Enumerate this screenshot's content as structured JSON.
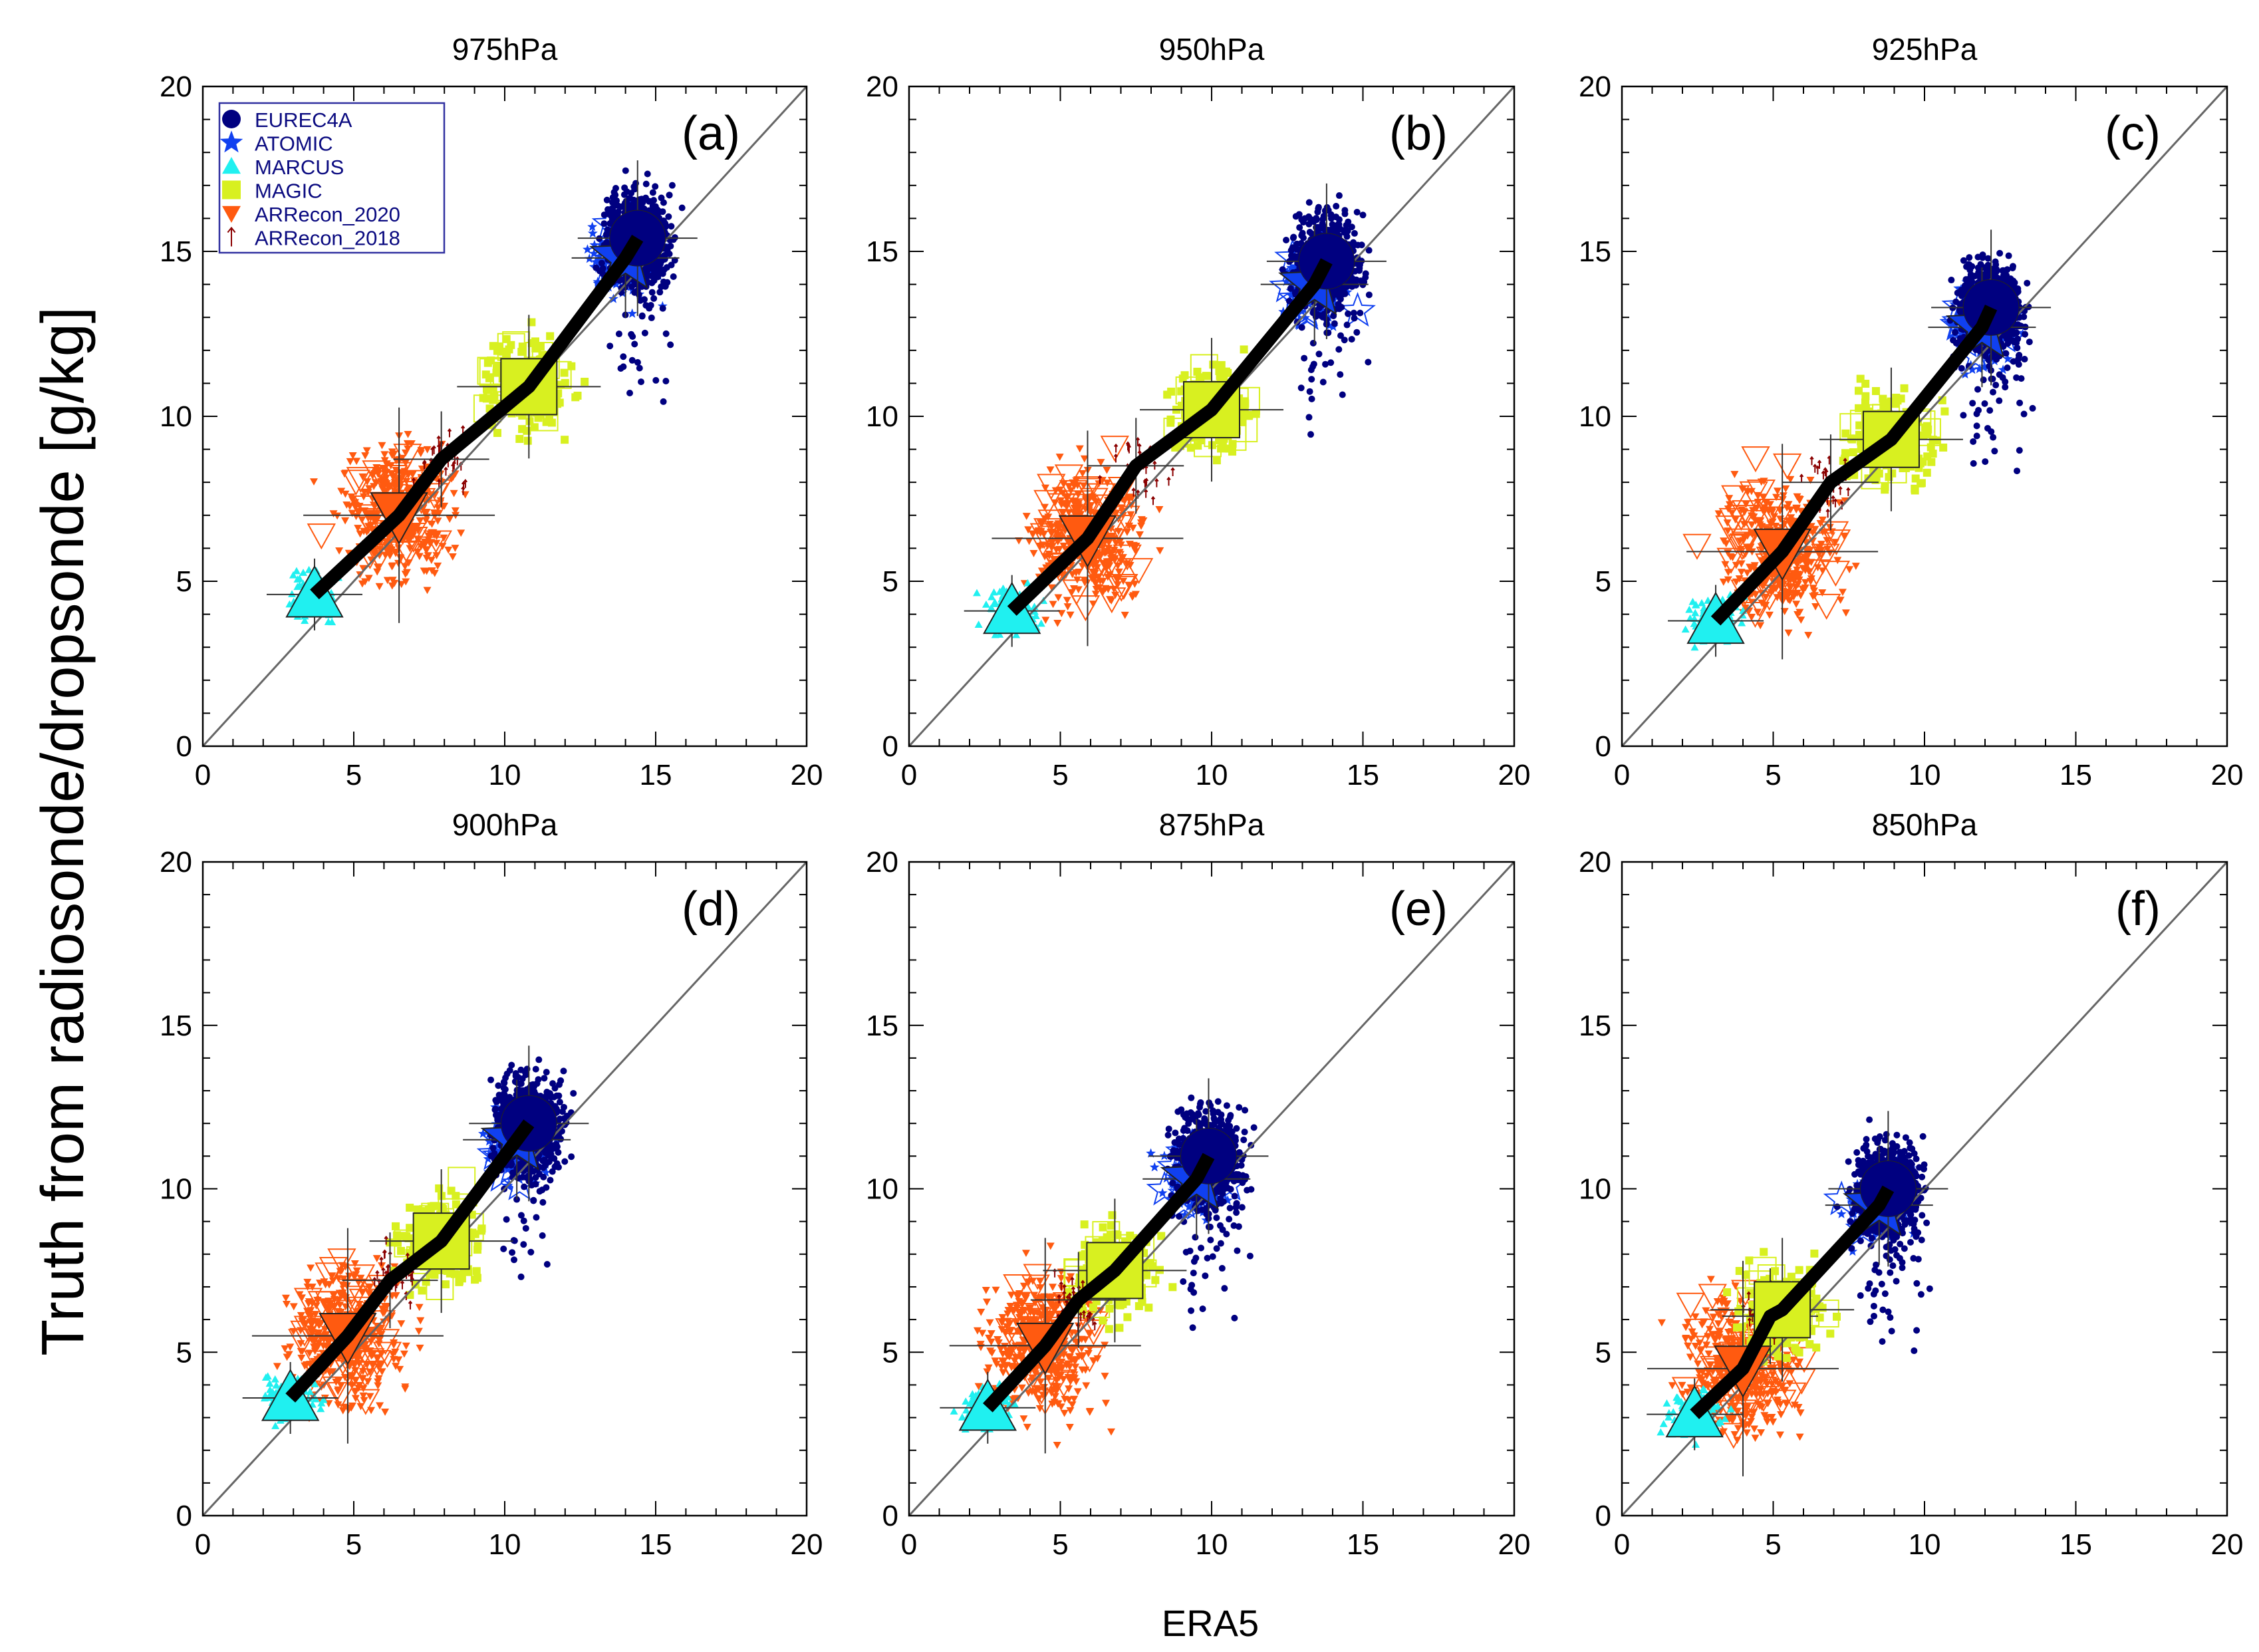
{
  "chart_data": {
    "type": "scatter",
    "ylabel": "Truth from radiosonde/dropsonde [g/kg]",
    "xlabel": "ERA5",
    "xlim": [
      0,
      20
    ],
    "ylim": [
      0,
      20
    ],
    "ticks": [
      0,
      5,
      10,
      15,
      20
    ],
    "grid": false,
    "one_to_one_line": true,
    "legend_placement": "top-left of panel (a)",
    "legend": [
      {
        "name": "EUREC4A",
        "marker": "circle",
        "color": "#000080"
      },
      {
        "name": "ATOMIC",
        "marker": "star",
        "color": "#1040f0"
      },
      {
        "name": "MARCUS",
        "marker": "triangle-up",
        "color": "#20f0f0"
      },
      {
        "name": "MAGIC",
        "marker": "square",
        "color": "#d8f020"
      },
      {
        "name": "ARRecon_2020",
        "marker": "triangle-down",
        "color": "#ff5a10"
      },
      {
        "name": "ARRecon_2018",
        "marker": "arrow-up",
        "color": "#8b0000"
      }
    ],
    "panels": [
      {
        "title": "975hPa",
        "tag": "(a)",
        "means": {
          "MARCUS": [
            3.7,
            4.6
          ],
          "ARRecon_2020": [
            6.5,
            7.0
          ],
          "ARRecon_2018": [
            7.9,
            8.7
          ],
          "MAGIC": [
            10.8,
            10.9
          ],
          "ATOMIC": [
            14.0,
            14.8
          ],
          "EUREC4A": [
            14.4,
            15.4
          ]
        }
      },
      {
        "title": "950hPa",
        "tag": "(b)",
        "means": {
          "MARCUS": [
            3.4,
            4.1
          ],
          "ARRecon_2020": [
            5.9,
            6.3
          ],
          "ARRecon_2018": [
            7.5,
            8.5
          ],
          "MAGIC": [
            10.0,
            10.2
          ],
          "ATOMIC": [
            13.4,
            14.0
          ],
          "EUREC4A": [
            13.8,
            14.7
          ]
        }
      },
      {
        "title": "925hPa",
        "tag": "(c)",
        "means": {
          "MARCUS": [
            3.1,
            3.8
          ],
          "ARRecon_2020": [
            5.3,
            5.9
          ],
          "ARRecon_2018": [
            6.9,
            8.0
          ],
          "MAGIC": [
            8.9,
            9.3
          ],
          "ATOMIC": [
            11.9,
            12.7
          ],
          "EUREC4A": [
            12.2,
            13.3
          ]
        }
      },
      {
        "title": "900hPa",
        "tag": "(d)",
        "means": {
          "MARCUS": [
            2.9,
            3.6
          ],
          "ARRecon_2020": [
            4.8,
            5.5
          ],
          "ARRecon_2018": [
            6.2,
            7.2
          ],
          "MAGIC": [
            7.9,
            8.4
          ],
          "ATOMIC": [
            10.4,
            11.5
          ],
          "EUREC4A": [
            10.8,
            12.0
          ]
        }
      },
      {
        "title": "875hPa",
        "tag": "(e)",
        "means": {
          "MARCUS": [
            2.6,
            3.3
          ],
          "ARRecon_2020": [
            4.5,
            5.2
          ],
          "ARRecon_2018": [
            5.6,
            6.6
          ],
          "MAGIC": [
            6.8,
            7.5
          ],
          "ATOMIC": [
            9.5,
            10.3
          ],
          "EUREC4A": [
            9.9,
            11.0
          ]
        }
      },
      {
        "title": "850hPa",
        "tag": "(f)",
        "means": {
          "MARCUS": [
            2.4,
            3.1
          ],
          "ARRecon_2020": [
            4.0,
            4.5
          ],
          "ARRecon_2018": [
            4.9,
            6.1
          ],
          "MAGIC": [
            5.3,
            6.3
          ],
          "ATOMIC": [
            8.5,
            9.5
          ],
          "EUREC4A": [
            8.8,
            10.0
          ]
        }
      }
    ]
  }
}
